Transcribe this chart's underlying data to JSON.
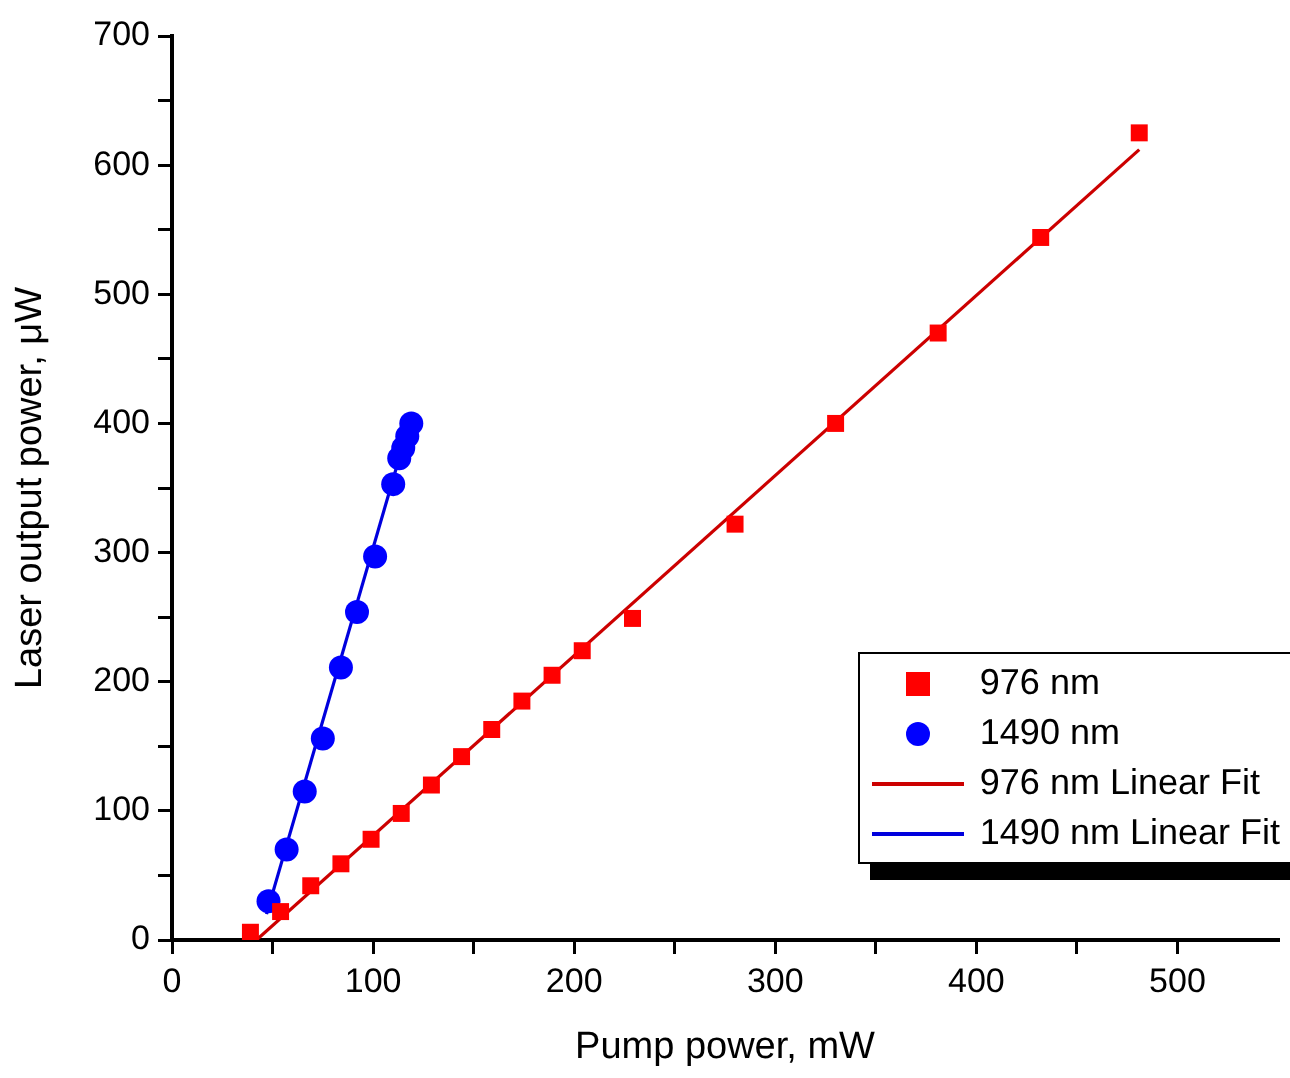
{
  "chart_data": {
    "type": "scatter",
    "xlabel": "Pump power, mW",
    "ylabel": "Laser output power, μW",
    "xlim": [
      0,
      550
    ],
    "xticks": [
      0,
      {
        "value": 50,
        "label": null
      },
      100,
      {
        "value": 150,
        "label": null
      },
      200,
      {
        "value": 250,
        "label": null
      },
      300,
      {
        "value": 350,
        "label": null
      },
      400,
      {
        "value": 450,
        "label": null
      },
      500
    ],
    "ylim": [
      0,
      700
    ],
    "yticks": [
      0,
      {
        "value": 50,
        "label": null
      },
      100,
      {
        "value": 150,
        "label": null
      },
      200,
      {
        "value": 250,
        "label": null
      },
      300,
      {
        "value": 350,
        "label": null
      },
      400,
      {
        "value": 450,
        "label": null
      },
      500,
      {
        "value": 550,
        "label": null
      },
      600,
      {
        "value": 650,
        "label": null
      },
      700
    ],
    "grid": false,
    "legend": "bottom right",
    "series": [
      {
        "name": "976 nm",
        "type": "scatter",
        "marker": "square",
        "color": "#ff0000",
        "x": [
          39,
          54,
          69,
          84,
          99,
          114,
          129,
          144,
          159,
          174,
          189,
          204,
          229,
          280,
          330,
          381,
          432,
          481
        ],
        "values": [
          6,
          22,
          42,
          59,
          78,
          98,
          120,
          142,
          163,
          185,
          205,
          224,
          249,
          322,
          400,
          470,
          544,
          625
        ]
      },
      {
        "name": "1490 nm",
        "type": "scatter",
        "marker": "circle",
        "color": "#0000ff",
        "x": [
          48,
          57,
          66,
          75,
          84,
          92,
          101,
          110,
          113,
          115,
          117,
          119
        ],
        "values": [
          30,
          70,
          115,
          156,
          211,
          254,
          297,
          353,
          373,
          381,
          390,
          400
        ]
      },
      {
        "name": "976 nm Linear Fit",
        "type": "line",
        "marker": "none",
        "color": "#cc0000",
        "x": [
          42,
          481
        ],
        "values": [
          0,
          612
        ]
      },
      {
        "name": "1490 nm Linear Fit",
        "type": "line",
        "marker": "none",
        "color": "#0000dd",
        "x": [
          47,
          118
        ],
        "values": [
          20,
          400
        ]
      }
    ]
  }
}
